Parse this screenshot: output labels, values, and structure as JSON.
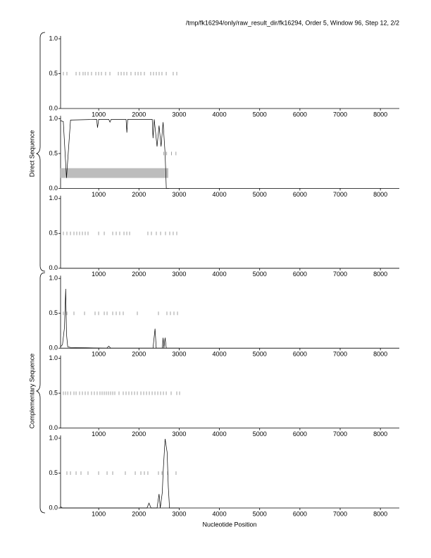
{
  "title": "/tmp/fk16294/only/raw_result_dir/fk16294, Order 5, Window 96, Step 12, 2/2",
  "xlabel": "Nucleotide Position",
  "groups": [
    "Direct Sequence",
    "Complementary Sequence"
  ],
  "chart_data": [
    {
      "type": "line",
      "xlim": [
        0,
        8470
      ],
      "ylim": [
        0,
        1
      ],
      "xticks": [
        1000,
        2000,
        3000,
        4000,
        5000,
        6000,
        7000,
        8000
      ],
      "yticks": [
        {
          "value": 0,
          "label": "0.0"
        },
        {
          "value": 0.5,
          "label": "0.5"
        },
        {
          "value": 1,
          "label": "1.0"
        }
      ],
      "x": [],
      "values": [],
      "markers": [
        122,
        210,
        438,
        525,
        612,
        665,
        735,
        822,
        928,
        998,
        1068,
        1172,
        1278,
        1488,
        1558,
        1628,
        1698,
        1802,
        1908,
        1978,
        2048,
        2135,
        2292,
        2362,
        2432,
        2502,
        2572,
        2678,
        2852,
        2940
      ]
    },
    {
      "type": "line",
      "xlim": [
        0,
        8470
      ],
      "ylim": [
        0,
        1
      ],
      "xticks": [
        1000,
        2000,
        3000,
        4000,
        5000,
        6000,
        7000,
        8000
      ],
      "yticks": [
        {
          "value": 0,
          "label": "0.0"
        },
        {
          "value": 0.5,
          "label": "0.5"
        },
        {
          "value": 1,
          "label": "1.0"
        }
      ],
      "region": [
        50,
        2730
      ],
      "x": [
        50,
        120,
        200,
        300,
        950,
        970,
        1000,
        1250,
        1280,
        1310,
        1680,
        1700,
        1720,
        2330,
        2350,
        2380,
        2450,
        2500,
        2550,
        2600,
        2650,
        2680,
        2750
      ],
      "values": [
        0.97,
        0.96,
        0.15,
        0.98,
        0.99,
        0.87,
        0.99,
        0.99,
        0.95,
        0.99,
        0.99,
        0.8,
        0.99,
        0.99,
        0.72,
        0.99,
        0.6,
        0.9,
        0.6,
        0.95,
        0.5,
        0.0,
        0.0
      ],
      "markers": [
        2620,
        2690,
        2810,
        2920
      ]
    },
    {
      "type": "line",
      "xlim": [
        0,
        8470
      ],
      "ylim": [
        0,
        1
      ],
      "xticks": [
        1000,
        2000,
        3000,
        4000,
        5000,
        6000,
        7000,
        8000
      ],
      "yticks": [
        {
          "value": 0,
          "label": "0.0"
        },
        {
          "value": 0.5,
          "label": "0.5"
        },
        {
          "value": 1,
          "label": "1.0"
        }
      ],
      "x": [],
      "values": [],
      "markers": [
        122,
        210,
        298,
        385,
        455,
        525,
        595,
        665,
        735,
        998,
        1138,
        1348,
        1435,
        1522,
        1628,
        1698,
        1768,
        2222,
        2310,
        2432,
        2538,
        2660,
        2765,
        2852,
        2940
      ]
    },
    {
      "type": "line",
      "xlim": [
        0,
        8470
      ],
      "ylim": [
        0,
        1
      ],
      "xticks": [
        1000,
        2000,
        3000,
        4000,
        5000,
        6000,
        7000,
        8000
      ],
      "yticks": [
        {
          "value": 0,
          "label": "0.0"
        },
        {
          "value": 0.5,
          "label": "0.5"
        },
        {
          "value": 1,
          "label": "1.0"
        }
      ],
      "x": [
        50,
        100,
        150,
        180,
        200,
        230,
        300,
        1200,
        1250,
        1300,
        2350,
        2400,
        2430,
        2580,
        2600,
        2620,
        2650,
        2680,
        3000
      ],
      "values": [
        0.02,
        0.05,
        0.3,
        0.85,
        0.2,
        0.02,
        0.01,
        0,
        0.03,
        0,
        0,
        0.28,
        0,
        0,
        0.15,
        0,
        0.15,
        0,
        0
      ],
      "markers": [
        122,
        210,
        385,
        648,
        910,
        998,
        1138,
        1208,
        1348,
        1435,
        1522,
        1610,
        1960,
        2485,
        2695,
        2782,
        2870,
        2958
      ]
    },
    {
      "type": "line",
      "xlim": [
        0,
        8470
      ],
      "ylim": [
        0,
        1
      ],
      "xticks": [
        1000,
        2000,
        3000,
        4000,
        5000,
        6000,
        7000,
        8000
      ],
      "yticks": [
        {
          "value": 0,
          "label": "0.0"
        },
        {
          "value": 0.5,
          "label": "0.5"
        },
        {
          "value": 1,
          "label": "1.0"
        }
      ],
      "x": [],
      "values": [],
      "markers": [
        122,
        175,
        230,
        300,
        385,
        438,
        525,
        595,
        665,
        735,
        822,
        892,
        962,
        1032,
        1085,
        1138,
        1190,
        1242,
        1295,
        1348,
        1400,
        1505,
        1610,
        1680,
        1750,
        1820,
        1890,
        1960,
        2048,
        2118,
        2188,
        2258,
        2328,
        2398,
        2468,
        2538,
        2608,
        2678,
        2800,
        2940,
        3010
      ]
    },
    {
      "type": "line",
      "xlim": [
        0,
        8470
      ],
      "ylim": [
        0,
        1
      ],
      "xticks": [
        1000,
        2000,
        3000,
        4000,
        5000,
        6000,
        7000,
        8000
      ],
      "yticks": [
        {
          "value": 0,
          "label": "0.0"
        },
        {
          "value": 0.5,
          "label": "0.5"
        },
        {
          "value": 1,
          "label": "1.0"
        }
      ],
      "x": [
        50,
        100,
        2200,
        2250,
        2300,
        2450,
        2500,
        2530,
        2580,
        2600,
        2650,
        2700,
        2730,
        2760,
        3000
      ],
      "values": [
        0.02,
        0,
        0,
        0.07,
        0,
        0,
        0.2,
        0,
        0.22,
        0.5,
        0.99,
        0.8,
        0.3,
        0,
        0
      ],
      "markers": [
        210,
        298,
        438,
        560,
        735,
        998,
        1208,
        1348,
        1662,
        1908,
        2048,
        2135,
        2222,
        2485,
        2572,
        2712,
        2922
      ]
    }
  ]
}
